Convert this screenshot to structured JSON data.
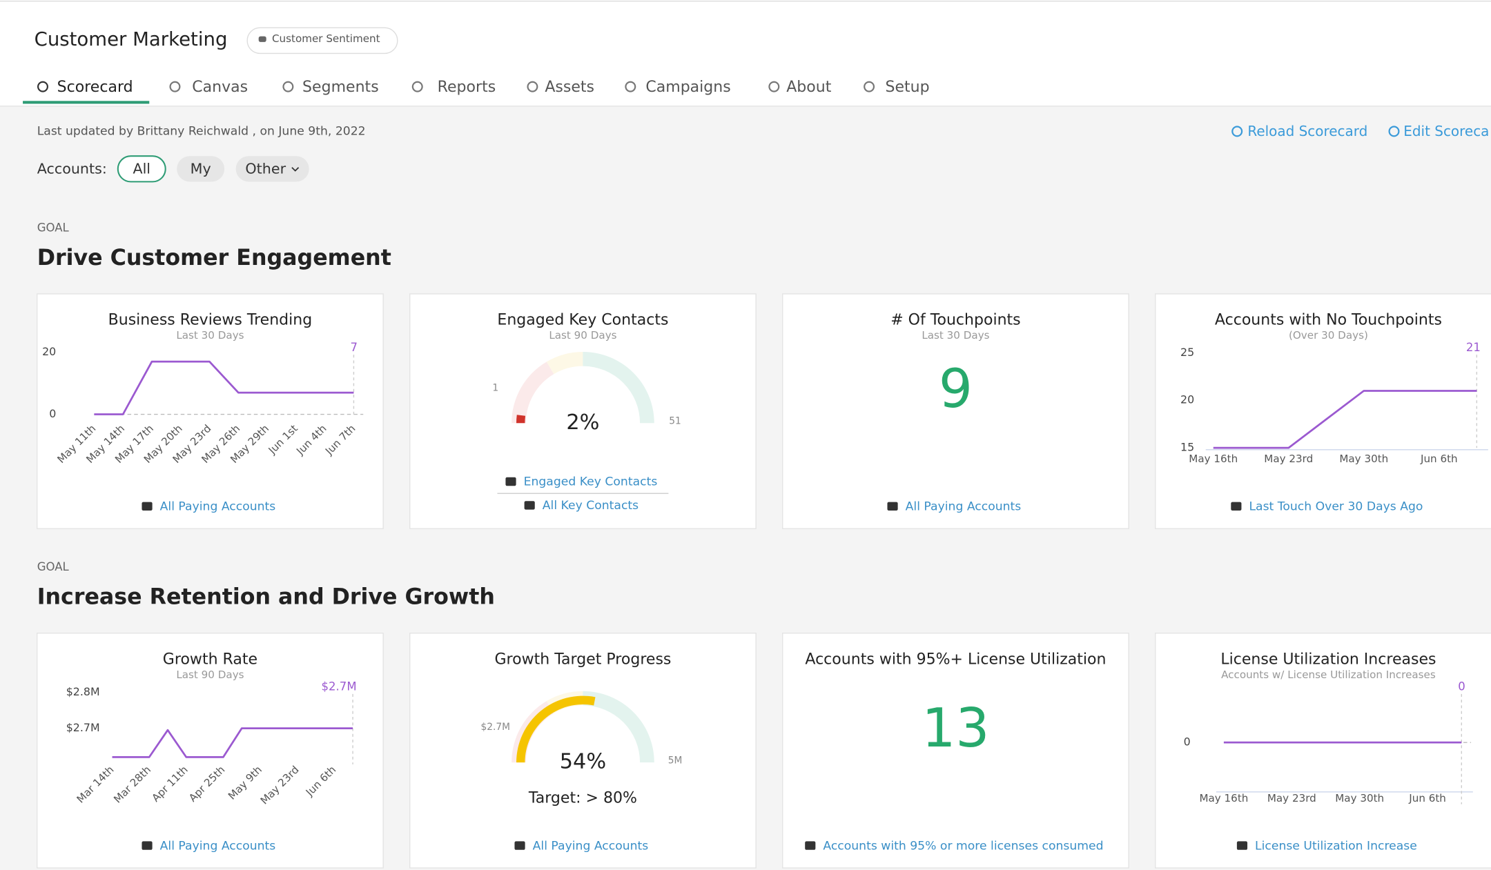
{
  "header": {
    "title": "Customer Marketing",
    "badge": "Customer Sentiment"
  },
  "tabs": [
    "Scorecard",
    "Canvas",
    "Segments",
    "Reports",
    "Assets",
    "Campaigns",
    "About",
    "Setup"
  ],
  "meta": "Last updated by Brittany Reichwald , on June 9th, 2022",
  "actions": [
    "Reload Scorecard",
    "Edit Scoreca"
  ],
  "accounts": {
    "label": "Accounts:",
    "options": [
      "All",
      "My",
      "Other"
    ]
  },
  "goals": [
    {
      "kicker": "GOAL",
      "title": "Drive Customer Engagement",
      "cards": [
        {
          "type": "line",
          "title": "Business Reviews Trending",
          "subtitle": "Last 30 Days",
          "color": "#9b59d0",
          "zero_line": true,
          "categories": [
            "May 11th",
            "May 14th",
            "May 17th",
            "May 20th",
            "May 23rd",
            "May 26th",
            "May 29th",
            "Jun 1st",
            "Jun 4th",
            "Jun 7th"
          ],
          "values": [
            0,
            0,
            17,
            17,
            17,
            7,
            7,
            7,
            7,
            7
          ],
          "ylim": [
            -1,
            22
          ],
          "yticks": [
            0,
            20
          ],
          "links": [
            "All Paying Accounts"
          ]
        },
        {
          "type": "gauge",
          "title": "Engaged Key Contacts",
          "subtitle": "Last 90 Days",
          "value": 2,
          "value_label": "2%",
          "color": "#d0332b",
          "min": 1,
          "max": 51,
          "links": [
            "Engaged Key Contacts",
            "All Key Contacts"
          ]
        },
        {
          "type": "number",
          "title": "# Of Touchpoints",
          "subtitle": "Last 30 Days",
          "value": 9,
          "links": [
            "All Paying Accounts"
          ]
        },
        {
          "type": "line",
          "title": "Accounts with No Touchpoints",
          "subtitle": "(Over 30 Days)",
          "color": "#9b59d0",
          "categories": [
            "May 16th",
            null,
            "May 23rd",
            null,
            "May 30th",
            null,
            "Jun 6th",
            null
          ],
          "values": [
            15,
            15,
            15,
            18,
            21,
            21,
            21,
            21
          ],
          "ylim": [
            15,
            25
          ],
          "yticks": [
            15,
            20,
            25
          ],
          "links": [
            "Last Touch Over 30 Days Ago"
          ]
        }
      ]
    },
    {
      "kicker": "GOAL",
      "title": "Increase Retention and Drive Growth",
      "cards": [
        {
          "type": "line",
          "title": "Growth Rate",
          "subtitle": "Last 90 Days",
          "color": "#9b59d0",
          "categories": [
            "Mar 14th",
            null,
            "Mar 28th",
            null,
            "Apr 11th",
            null,
            "Apr 25th",
            null,
            "May 9th",
            null,
            "May 23rd",
            null,
            "Jun 6th",
            null
          ],
          "values": [
            2620000,
            2620000,
            2620000,
            2695000,
            2620000,
            2620000,
            2620000,
            2700000,
            2700000,
            2700000,
            2700000,
            2700000,
            2700000,
            2700000
          ],
          "value_labels": [
            null,
            null,
            null,
            null,
            null,
            null,
            null,
            null,
            null,
            null,
            null,
            null,
            null,
            "$2.7M"
          ],
          "ylim": [
            2600000,
            2840000
          ],
          "yticks": [
            {
              "value": 2700000,
              "label": "$2.7M"
            },
            {
              "value": 2800000,
              "label": "$2.8M"
            }
          ],
          "links": [
            "All Paying Accounts"
          ]
        },
        {
          "type": "gauge",
          "title": "Growth Target Progress",
          "value": 54,
          "value_label": "54%",
          "color": "#f5c400",
          "min": {
            "value": 2700000,
            "label": "$2.7M"
          },
          "max": {
            "value": 5000000,
            "label": "5M"
          },
          "target": "Target: > 80%",
          "links": [
            "All Paying Accounts"
          ]
        },
        {
          "type": "number",
          "title": "Accounts with 95%+ License Utilization",
          "value": 13,
          "links": [
            "Accounts with 95% or more licenses consumed"
          ]
        },
        {
          "type": "line",
          "title": "License Utilization Increases",
          "subtitle": "Accounts w/ License Utilization Increases",
          "color": "#9b59d0",
          "zero_line": true,
          "categories": [
            "May 16th",
            null,
            "May 23rd",
            null,
            "May 30th",
            null,
            "Jun 6th",
            null
          ],
          "values": [
            0,
            0,
            0,
            0,
            0,
            0,
            0,
            0
          ],
          "ylim": [
            -1,
            1
          ],
          "yticks": [
            0
          ],
          "links": [
            "License Utilization Increase"
          ]
        }
      ]
    }
  ]
}
